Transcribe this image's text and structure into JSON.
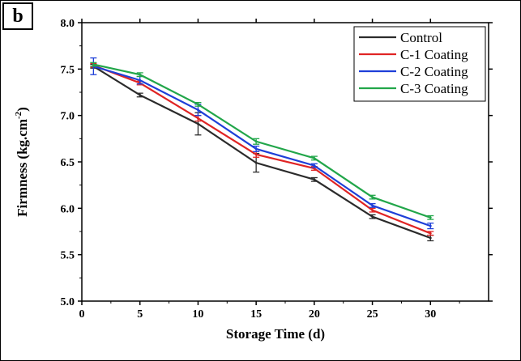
{
  "panel_label": "b",
  "chart_data": {
    "type": "line",
    "xlabel": "Storage Time (d)",
    "ylabel": "Firmness (kg.cm",
    "ylabel_sup": "-2",
    "ylabel_end": ")",
    "xlim": [
      0,
      35
    ],
    "ylim": [
      5.0,
      8.0
    ],
    "xticks": [
      0,
      5,
      10,
      15,
      20,
      25,
      30
    ],
    "yticks": [
      "5.0",
      "5.5",
      "6.0",
      "6.5",
      "7.0",
      "7.5",
      "8.0"
    ],
    "x": [
      1,
      5,
      10,
      15,
      20,
      25,
      30
    ],
    "legend_position": "top-right",
    "series": [
      {
        "name": "Control",
        "color": "#2b2b2b",
        "values": [
          7.53,
          7.22,
          6.91,
          6.49,
          6.31,
          5.91,
          5.68
        ],
        "errors": [
          0.02,
          0.02,
          0.12,
          0.1,
          0.02,
          0.02,
          0.03
        ]
      },
      {
        "name": "C-1 Coating",
        "color": "#e02424",
        "values": [
          7.54,
          7.35,
          6.97,
          6.58,
          6.43,
          5.98,
          5.73
        ],
        "errors": [
          0.02,
          0.02,
          0.03,
          0.03,
          0.02,
          0.02,
          0.02
        ]
      },
      {
        "name": "C-2 Coating",
        "color": "#1e3fd8",
        "values": [
          7.53,
          7.38,
          7.06,
          6.64,
          6.46,
          6.03,
          5.81
        ],
        "errors": [
          0.09,
          0.04,
          0.06,
          0.03,
          0.02,
          0.02,
          0.03
        ]
      },
      {
        "name": "C-3 Coating",
        "color": "#22a64a",
        "values": [
          7.55,
          7.44,
          7.12,
          6.72,
          6.54,
          6.12,
          5.9
        ],
        "errors": [
          0.02,
          0.02,
          0.02,
          0.03,
          0.02,
          0.02,
          0.02
        ]
      }
    ]
  }
}
